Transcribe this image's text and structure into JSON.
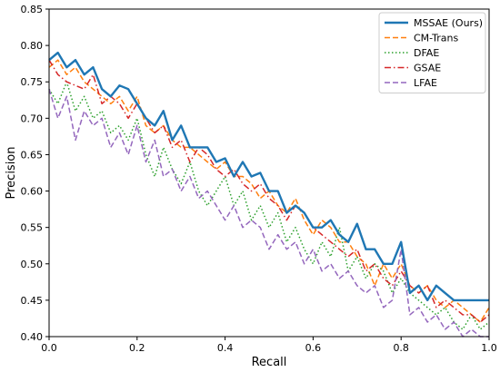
{
  "chart_data": {
    "type": "line",
    "title": "",
    "xlabel": "Recall",
    "ylabel": "Precision",
    "xlim": [
      0.0,
      1.0
    ],
    "ylim": [
      0.4,
      0.85
    ],
    "xticks": [
      "0.0",
      "0.2",
      "0.4",
      "0.6",
      "0.8",
      "1.0"
    ],
    "yticks": [
      "0.40",
      "0.45",
      "0.50",
      "0.55",
      "0.60",
      "0.65",
      "0.70",
      "0.75",
      "0.80",
      "0.85"
    ],
    "grid": false,
    "legend_position": "top-right",
    "series": [
      {
        "name": "MSSAE (Ours)",
        "color": "#1f77b4",
        "style": "solid",
        "points": [
          [
            0.0,
            0.78
          ],
          [
            0.02,
            0.79
          ],
          [
            0.04,
            0.77
          ],
          [
            0.06,
            0.78
          ],
          [
            0.08,
            0.76
          ],
          [
            0.1,
            0.77
          ],
          [
            0.12,
            0.74
          ],
          [
            0.14,
            0.73
          ],
          [
            0.16,
            0.745
          ],
          [
            0.18,
            0.74
          ],
          [
            0.2,
            0.72
          ],
          [
            0.22,
            0.7
          ],
          [
            0.24,
            0.69
          ],
          [
            0.26,
            0.71
          ],
          [
            0.28,
            0.67
          ],
          [
            0.3,
            0.69
          ],
          [
            0.32,
            0.66
          ],
          [
            0.34,
            0.66
          ],
          [
            0.36,
            0.66
          ],
          [
            0.38,
            0.64
          ],
          [
            0.4,
            0.645
          ],
          [
            0.42,
            0.62
          ],
          [
            0.44,
            0.64
          ],
          [
            0.46,
            0.62
          ],
          [
            0.48,
            0.625
          ],
          [
            0.5,
            0.6
          ],
          [
            0.52,
            0.6
          ],
          [
            0.54,
            0.57
          ],
          [
            0.56,
            0.58
          ],
          [
            0.58,
            0.57
          ],
          [
            0.6,
            0.55
          ],
          [
            0.62,
            0.55
          ],
          [
            0.64,
            0.56
          ],
          [
            0.66,
            0.54
          ],
          [
            0.68,
            0.53
          ],
          [
            0.7,
            0.555
          ],
          [
            0.72,
            0.52
          ],
          [
            0.74,
            0.52
          ],
          [
            0.76,
            0.5
          ],
          [
            0.78,
            0.5
          ],
          [
            0.8,
            0.53
          ],
          [
            0.82,
            0.46
          ],
          [
            0.84,
            0.47
          ],
          [
            0.86,
            0.45
          ],
          [
            0.88,
            0.47
          ],
          [
            0.9,
            0.46
          ],
          [
            0.92,
            0.45
          ],
          [
            0.95,
            0.45
          ],
          [
            1.0,
            0.45
          ]
        ]
      },
      {
        "name": "CM-Trans",
        "color": "#ff7f0e",
        "style": "dashed",
        "points": [
          [
            0.0,
            0.77
          ],
          [
            0.02,
            0.78
          ],
          [
            0.04,
            0.76
          ],
          [
            0.06,
            0.77
          ],
          [
            0.08,
            0.75
          ],
          [
            0.1,
            0.74
          ],
          [
            0.12,
            0.73
          ],
          [
            0.14,
            0.72
          ],
          [
            0.16,
            0.73
          ],
          [
            0.18,
            0.71
          ],
          [
            0.2,
            0.73
          ],
          [
            0.22,
            0.69
          ],
          [
            0.24,
            0.68
          ],
          [
            0.26,
            0.69
          ],
          [
            0.28,
            0.67
          ],
          [
            0.3,
            0.66
          ],
          [
            0.32,
            0.66
          ],
          [
            0.34,
            0.65
          ],
          [
            0.36,
            0.64
          ],
          [
            0.38,
            0.63
          ],
          [
            0.4,
            0.64
          ],
          [
            0.42,
            0.62
          ],
          [
            0.44,
            0.62
          ],
          [
            0.46,
            0.61
          ],
          [
            0.48,
            0.59
          ],
          [
            0.5,
            0.6
          ],
          [
            0.52,
            0.58
          ],
          [
            0.54,
            0.57
          ],
          [
            0.56,
            0.59
          ],
          [
            0.58,
            0.56
          ],
          [
            0.6,
            0.54
          ],
          [
            0.62,
            0.56
          ],
          [
            0.64,
            0.55
          ],
          [
            0.66,
            0.53
          ],
          [
            0.68,
            0.53
          ],
          [
            0.7,
            0.51
          ],
          [
            0.72,
            0.5
          ],
          [
            0.74,
            0.47
          ],
          [
            0.76,
            0.5
          ],
          [
            0.78,
            0.48
          ],
          [
            0.8,
            0.5
          ],
          [
            0.82,
            0.47
          ],
          [
            0.84,
            0.46
          ],
          [
            0.86,
            0.47
          ],
          [
            0.88,
            0.45
          ],
          [
            0.9,
            0.44
          ],
          [
            0.92,
            0.45
          ],
          [
            0.94,
            0.44
          ],
          [
            0.96,
            0.43
          ],
          [
            0.98,
            0.42
          ],
          [
            1.0,
            0.44
          ]
        ]
      },
      {
        "name": "DFAE",
        "color": "#2ca02c",
        "style": "dotted",
        "points": [
          [
            0.0,
            0.74
          ],
          [
            0.02,
            0.72
          ],
          [
            0.04,
            0.75
          ],
          [
            0.06,
            0.71
          ],
          [
            0.08,
            0.73
          ],
          [
            0.1,
            0.7
          ],
          [
            0.12,
            0.71
          ],
          [
            0.14,
            0.68
          ],
          [
            0.16,
            0.69
          ],
          [
            0.18,
            0.67
          ],
          [
            0.2,
            0.7
          ],
          [
            0.22,
            0.65
          ],
          [
            0.24,
            0.62
          ],
          [
            0.26,
            0.66
          ],
          [
            0.28,
            0.63
          ],
          [
            0.3,
            0.61
          ],
          [
            0.32,
            0.64
          ],
          [
            0.34,
            0.6
          ],
          [
            0.36,
            0.58
          ],
          [
            0.38,
            0.6
          ],
          [
            0.4,
            0.62
          ],
          [
            0.42,
            0.58
          ],
          [
            0.44,
            0.6
          ],
          [
            0.46,
            0.56
          ],
          [
            0.48,
            0.58
          ],
          [
            0.5,
            0.55
          ],
          [
            0.52,
            0.57
          ],
          [
            0.54,
            0.53
          ],
          [
            0.56,
            0.55
          ],
          [
            0.58,
            0.52
          ],
          [
            0.6,
            0.5
          ],
          [
            0.62,
            0.53
          ],
          [
            0.64,
            0.51
          ],
          [
            0.66,
            0.55
          ],
          [
            0.68,
            0.49
          ],
          [
            0.7,
            0.51
          ],
          [
            0.72,
            0.48
          ],
          [
            0.74,
            0.5
          ],
          [
            0.76,
            0.49
          ],
          [
            0.78,
            0.46
          ],
          [
            0.8,
            0.48
          ],
          [
            0.82,
            0.46
          ],
          [
            0.84,
            0.45
          ],
          [
            0.86,
            0.44
          ],
          [
            0.88,
            0.43
          ],
          [
            0.9,
            0.44
          ],
          [
            0.92,
            0.42
          ],
          [
            0.94,
            0.41
          ],
          [
            0.96,
            0.43
          ],
          [
            0.98,
            0.41
          ],
          [
            1.0,
            0.42
          ]
        ]
      },
      {
        "name": "GSAE",
        "color": "#d62728",
        "style": "dashdot",
        "points": [
          [
            0.0,
            0.78
          ],
          [
            0.02,
            0.76
          ],
          [
            0.04,
            0.75
          ],
          [
            0.06,
            0.745
          ],
          [
            0.08,
            0.74
          ],
          [
            0.1,
            0.76
          ],
          [
            0.12,
            0.72
          ],
          [
            0.14,
            0.73
          ],
          [
            0.16,
            0.72
          ],
          [
            0.18,
            0.7
          ],
          [
            0.2,
            0.72
          ],
          [
            0.22,
            0.7
          ],
          [
            0.24,
            0.68
          ],
          [
            0.26,
            0.69
          ],
          [
            0.28,
            0.66
          ],
          [
            0.3,
            0.67
          ],
          [
            0.32,
            0.64
          ],
          [
            0.34,
            0.66
          ],
          [
            0.36,
            0.65
          ],
          [
            0.38,
            0.63
          ],
          [
            0.4,
            0.62
          ],
          [
            0.42,
            0.63
          ],
          [
            0.44,
            0.61
          ],
          [
            0.46,
            0.6
          ],
          [
            0.48,
            0.61
          ],
          [
            0.5,
            0.59
          ],
          [
            0.52,
            0.58
          ],
          [
            0.54,
            0.56
          ],
          [
            0.56,
            0.58
          ],
          [
            0.58,
            0.57
          ],
          [
            0.6,
            0.55
          ],
          [
            0.62,
            0.54
          ],
          [
            0.64,
            0.53
          ],
          [
            0.66,
            0.52
          ],
          [
            0.68,
            0.51
          ],
          [
            0.7,
            0.52
          ],
          [
            0.72,
            0.49
          ],
          [
            0.74,
            0.5
          ],
          [
            0.76,
            0.48
          ],
          [
            0.78,
            0.47
          ],
          [
            0.8,
            0.49
          ],
          [
            0.82,
            0.47
          ],
          [
            0.84,
            0.46
          ],
          [
            0.86,
            0.47
          ],
          [
            0.88,
            0.44
          ],
          [
            0.9,
            0.45
          ],
          [
            0.92,
            0.44
          ],
          [
            0.94,
            0.43
          ],
          [
            0.96,
            0.43
          ],
          [
            0.98,
            0.42
          ],
          [
            1.0,
            0.43
          ]
        ]
      },
      {
        "name": "LFAE",
        "color": "#9467bd",
        "style": "dashed",
        "points": [
          [
            0.0,
            0.74
          ],
          [
            0.02,
            0.7
          ],
          [
            0.04,
            0.73
          ],
          [
            0.06,
            0.67
          ],
          [
            0.08,
            0.71
          ],
          [
            0.1,
            0.69
          ],
          [
            0.12,
            0.7
          ],
          [
            0.14,
            0.66
          ],
          [
            0.16,
            0.68
          ],
          [
            0.18,
            0.65
          ],
          [
            0.2,
            0.69
          ],
          [
            0.22,
            0.64
          ],
          [
            0.24,
            0.67
          ],
          [
            0.26,
            0.62
          ],
          [
            0.28,
            0.63
          ],
          [
            0.3,
            0.6
          ],
          [
            0.32,
            0.62
          ],
          [
            0.34,
            0.59
          ],
          [
            0.36,
            0.6
          ],
          [
            0.38,
            0.58
          ],
          [
            0.4,
            0.56
          ],
          [
            0.42,
            0.58
          ],
          [
            0.44,
            0.55
          ],
          [
            0.46,
            0.56
          ],
          [
            0.48,
            0.55
          ],
          [
            0.5,
            0.52
          ],
          [
            0.52,
            0.54
          ],
          [
            0.54,
            0.52
          ],
          [
            0.56,
            0.53
          ],
          [
            0.58,
            0.5
          ],
          [
            0.6,
            0.52
          ],
          [
            0.62,
            0.49
          ],
          [
            0.64,
            0.5
          ],
          [
            0.66,
            0.48
          ],
          [
            0.68,
            0.49
          ],
          [
            0.7,
            0.47
          ],
          [
            0.72,
            0.46
          ],
          [
            0.74,
            0.47
          ],
          [
            0.76,
            0.44
          ],
          [
            0.78,
            0.45
          ],
          [
            0.8,
            0.52
          ],
          [
            0.82,
            0.43
          ],
          [
            0.84,
            0.44
          ],
          [
            0.86,
            0.42
          ],
          [
            0.88,
            0.43
          ],
          [
            0.9,
            0.41
          ],
          [
            0.92,
            0.42
          ],
          [
            0.94,
            0.4
          ],
          [
            0.96,
            0.41
          ],
          [
            0.98,
            0.4
          ],
          [
            1.0,
            0.4
          ]
        ]
      }
    ]
  }
}
